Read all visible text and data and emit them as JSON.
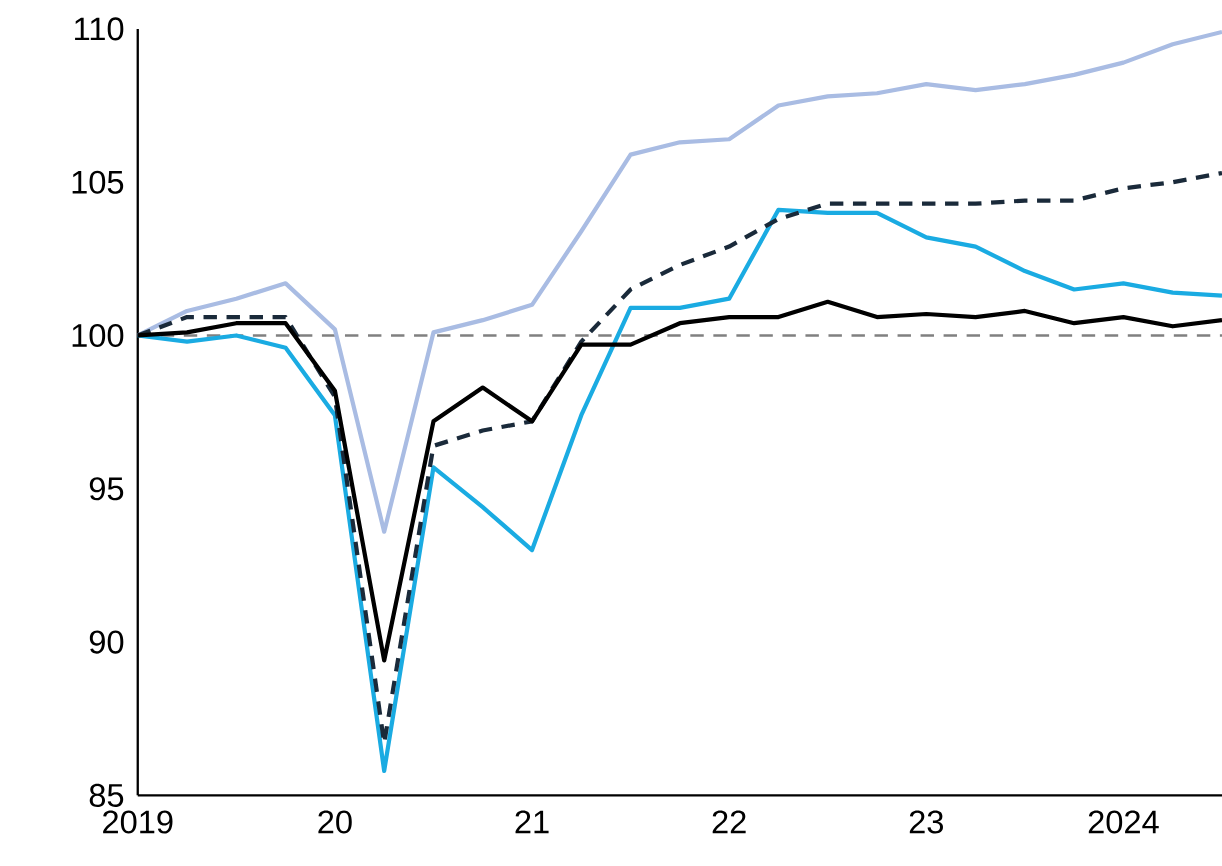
{
  "chart_data": {
    "type": "line",
    "x": [
      2019,
      2019.25,
      2019.5,
      2019.75,
      2020,
      2020.25,
      2020.5,
      2020.75,
      2021,
      2021.25,
      2021.5,
      2021.75,
      2022,
      2022.25,
      2022.5,
      2022.75,
      2023,
      2023.25,
      2023.5,
      2023.75,
      2024,
      2024.25,
      2024.5
    ],
    "series": [
      {
        "color": "#a9bce3",
        "line_style": "solid",
        "values": [
          100.0,
          100.8,
          101.2,
          101.7,
          100.2,
          93.6,
          100.1,
          100.5,
          101.0,
          103.4,
          105.9,
          106.3,
          106.4,
          107.5,
          107.8,
          107.9,
          108.2,
          108.0,
          108.2,
          108.5,
          108.9,
          109.5,
          109.9
        ]
      },
      {
        "color": "#1aabe2",
        "line_style": "solid",
        "values": [
          100.0,
          99.8,
          100.0,
          99.6,
          97.4,
          85.8,
          95.7,
          94.4,
          93.0,
          97.4,
          100.9,
          100.9,
          101.2,
          104.1,
          104.0,
          104.0,
          103.2,
          102.9,
          102.1,
          101.5,
          101.7,
          101.4,
          101.3
        ]
      },
      {
        "color": "#1a2a3a",
        "line_style": "dashed",
        "values": [
          100.0,
          100.6,
          100.6,
          100.6,
          98.0,
          86.7,
          96.4,
          96.9,
          97.2,
          99.8,
          101.5,
          102.3,
          102.9,
          103.8,
          104.3,
          104.3,
          104.3,
          104.3,
          104.4,
          104.4,
          104.8,
          105.0,
          105.3
        ]
      },
      {
        "color": "#000000",
        "line_style": "solid",
        "values": [
          100.0,
          100.1,
          100.4,
          100.4,
          98.2,
          89.4,
          97.2,
          98.3,
          97.2,
          99.7,
          99.7,
          100.4,
          100.6,
          100.6,
          101.1,
          100.6,
          100.7,
          100.6,
          100.8,
          100.4,
          100.6,
          100.3,
          100.5
        ]
      }
    ],
    "xlim": [
      2019,
      2024.5
    ],
    "xticks": [
      2019,
      {
        "value": 2020,
        "label": "20"
      },
      {
        "value": 2021,
        "label": "21"
      },
      {
        "value": 2022,
        "label": "22"
      },
      {
        "value": 2023,
        "label": "23"
      },
      2024
    ],
    "ylim": [
      85,
      110
    ],
    "yticks": [
      85,
      90,
      95,
      100,
      105,
      110
    ],
    "ref_lines": [
      {
        "axis": "y",
        "value": 100,
        "color": "#808080",
        "line_style": "dashed"
      }
    ]
  }
}
